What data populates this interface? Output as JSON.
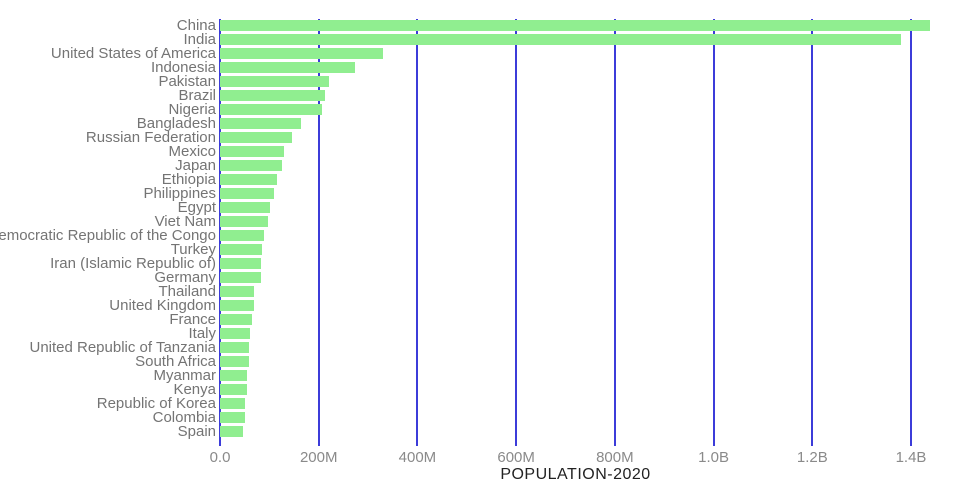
{
  "chart_data": {
    "type": "bar",
    "orientation": "horizontal",
    "title": "",
    "xlabel": "POPULATION-2020",
    "ylabel": "",
    "unit": "millions of people",
    "categories": [
      "China",
      "India",
      "United States of America",
      "Indonesia",
      "Pakistan",
      "Brazil",
      "Nigeria",
      "Bangladesh",
      "Russian Federation",
      "Mexico",
      "Japan",
      "Ethiopia",
      "Philippines",
      "Egypt",
      "Viet Nam",
      "Democratic Republic of the Congo",
      "Turkey",
      "Iran (Islamic Republic of)",
      "Germany",
      "Thailand",
      "United Kingdom",
      "France",
      "Italy",
      "United Republic of Tanzania",
      "South Africa",
      "Myanmar",
      "Kenya",
      "Republic of Korea",
      "Colombia",
      "Spain"
    ],
    "values": [
      1439.3,
      1380.0,
      331.0,
      273.5,
      220.9,
      212.6,
      206.1,
      164.7,
      145.9,
      128.9,
      126.5,
      115.0,
      109.6,
      102.3,
      97.3,
      89.6,
      84.3,
      84.0,
      83.8,
      69.8,
      67.9,
      65.3,
      60.5,
      59.7,
      59.3,
      54.4,
      53.8,
      51.3,
      50.9,
      46.8
    ],
    "x_ticks": [
      {
        "label": "0.0",
        "value": 0
      },
      {
        "label": "200M",
        "value": 200
      },
      {
        "label": "400M",
        "value": 400
      },
      {
        "label": "600M",
        "value": 600
      },
      {
        "label": "800M",
        "value": 800
      },
      {
        "label": "1.0B",
        "value": 1000
      },
      {
        "label": "1.2B",
        "value": 1200
      },
      {
        "label": "1.4B",
        "value": 1400
      }
    ],
    "xlim": [
      0,
      1440
    ],
    "grid": true,
    "legend": "none",
    "colors": {
      "bar": "#90ee90",
      "gridline": "#3c3cd9",
      "category_label": "#747474",
      "tick_label": "#8a8a8a",
      "axis_title": "#222222",
      "background": "#ffffff"
    }
  }
}
